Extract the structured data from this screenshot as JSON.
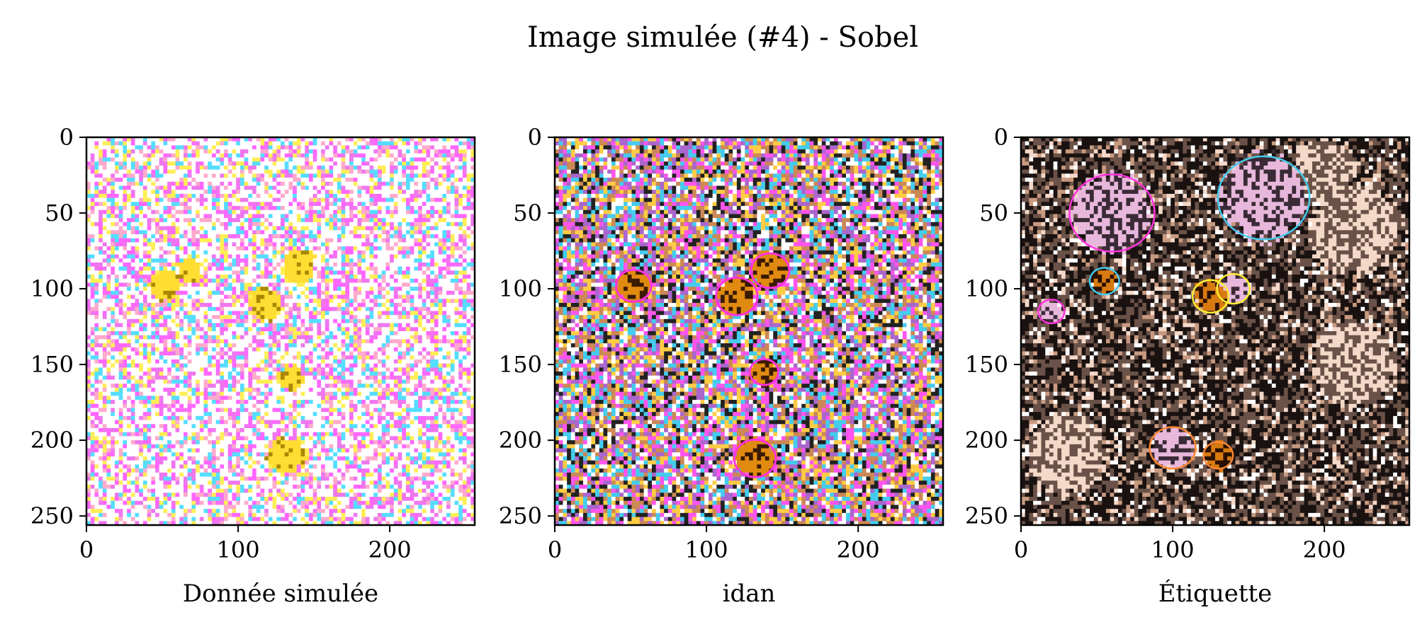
{
  "figure": {
    "title": "Image simulée (#4) - Sobel"
  },
  "chart_data": [
    {
      "type": "heatmap",
      "xlabel": "Donnée simulée",
      "xlim": [
        0,
        256
      ],
      "ylim": [
        256,
        0
      ],
      "x_ticks": [
        0,
        100,
        200
      ],
      "y_ticks": [
        0,
        50,
        100,
        150,
        200,
        250
      ],
      "x_tick_labels": [
        "0",
        "100",
        "200"
      ],
      "y_tick_labels": [
        "0",
        "50",
        "100",
        "150",
        "200",
        "250"
      ],
      "background_color": "#fbf1f6",
      "noise_colors": [
        "#ff66ff",
        "#ffee55",
        "#55ddff",
        "#ffaacc",
        "#ee77ee",
        "#ffffff"
      ],
      "blob_color": "#ffdd33",
      "regions": [
        {
          "cx": 52,
          "cy": 98,
          "r": 10
        },
        {
          "cx": 68,
          "cy": 88,
          "r": 8
        },
        {
          "cx": 118,
          "cy": 110,
          "r": 11
        },
        {
          "cx": 140,
          "cy": 85,
          "r": 11
        },
        {
          "cx": 135,
          "cy": 158,
          "r": 8
        },
        {
          "cx": 132,
          "cy": 210,
          "r": 12
        }
      ]
    },
    {
      "type": "heatmap",
      "xlabel": "idan",
      "xlim": [
        0,
        256
      ],
      "ylim": [
        256,
        0
      ],
      "x_ticks": [
        0,
        100,
        200
      ],
      "y_ticks": [
        0,
        50,
        100,
        150,
        200,
        250
      ],
      "x_tick_labels": [
        "0",
        "100",
        "200"
      ],
      "y_tick_labels": [
        "0",
        "50",
        "100",
        "150",
        "200",
        "250"
      ],
      "background_color": "#3a2a35",
      "noise_colors": [
        "#ff55ee",
        "#ffcc44",
        "#44ccee",
        "#ffffff",
        "#cc8855",
        "#222222",
        "#aa66cc"
      ],
      "blob_color": "#e08a10",
      "outline_color": "#ff33dd",
      "regions": [
        {
          "cx": 52,
          "cy": 98,
          "r": 11
        },
        {
          "cx": 120,
          "cy": 105,
          "r": 13
        },
        {
          "cx": 142,
          "cy": 88,
          "r": 12
        },
        {
          "cx": 138,
          "cy": 155,
          "r": 9
        },
        {
          "cx": 132,
          "cy": 212,
          "r": 13
        }
      ]
    },
    {
      "type": "heatmap",
      "xlabel": "Étiquette",
      "xlim": [
        0,
        256
      ],
      "ylim": [
        256,
        0
      ],
      "x_ticks": [
        0,
        100,
        200
      ],
      "y_ticks": [
        0,
        50,
        100,
        150,
        200,
        250
      ],
      "x_tick_labels": [
        "0",
        "100",
        "200"
      ],
      "y_tick_labels": [
        "0",
        "50",
        "100",
        "150",
        "200",
        "250"
      ],
      "background_color": "#2a201c",
      "noise_colors": [
        "#f4d8c8",
        "#c89a80",
        "#ffffff",
        "#6a5248",
        "#1a1210"
      ],
      "blob_color": "#d87a10",
      "pink_color": "#e8b8dc",
      "outline_colors": [
        "#ff33dd",
        "#44ccee",
        "#ffee33",
        "#ff8833"
      ],
      "pink_regions": [
        {
          "cx": 60,
          "cy": 50,
          "r": 26
        },
        {
          "cx": 160,
          "cy": 40,
          "r": 28
        },
        {
          "cx": 140,
          "cy": 100,
          "r": 10
        },
        {
          "cx": 100,
          "cy": 205,
          "r": 14
        },
        {
          "cx": 20,
          "cy": 115,
          "r": 8
        }
      ],
      "orange_regions": [
        {
          "cx": 55,
          "cy": 95,
          "r": 9
        },
        {
          "cx": 125,
          "cy": 105,
          "r": 11
        },
        {
          "cx": 130,
          "cy": 210,
          "r": 9
        }
      ],
      "light_regions": [
        {
          "cx": 220,
          "cy": 60,
          "r": 30
        },
        {
          "cx": 220,
          "cy": 150,
          "r": 28
        },
        {
          "cx": 30,
          "cy": 210,
          "r": 26
        },
        {
          "cx": 200,
          "cy": 20,
          "r": 20
        }
      ]
    }
  ]
}
